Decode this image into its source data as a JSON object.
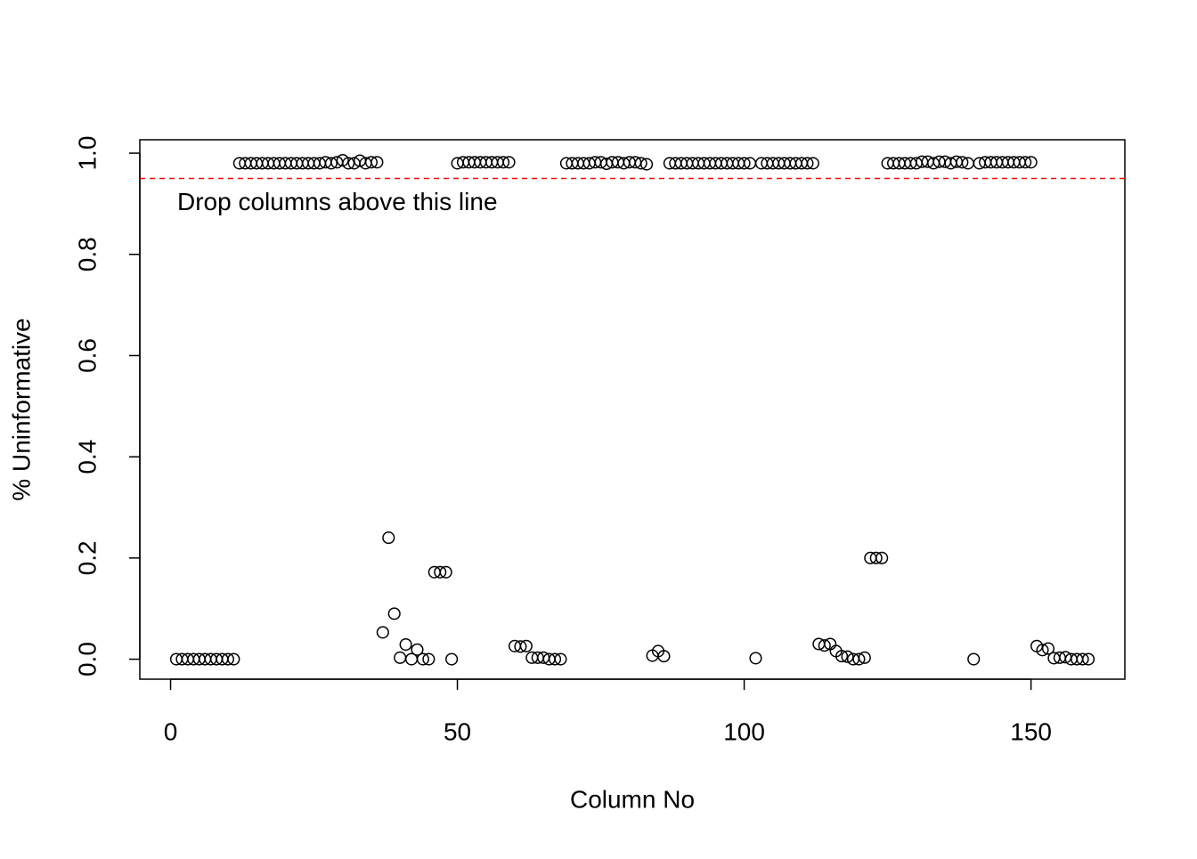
{
  "chart_data": {
    "type": "scatter",
    "xlabel": "Column No",
    "ylabel": "% Uninformative",
    "x": [
      1,
      2,
      3,
      4,
      5,
      6,
      7,
      8,
      9,
      10,
      11,
      12,
      13,
      14,
      15,
      16,
      17,
      18,
      19,
      20,
      21,
      22,
      23,
      24,
      25,
      26,
      27,
      28,
      29,
      30,
      31,
      32,
      33,
      34,
      35,
      36,
      37,
      38,
      39,
      40,
      41,
      42,
      43,
      44,
      45,
      46,
      47,
      48,
      49,
      50,
      51,
      52,
      53,
      54,
      55,
      56,
      57,
      58,
      59,
      60,
      61,
      62,
      63,
      64,
      65,
      66,
      67,
      68,
      69,
      70,
      71,
      72,
      73,
      74,
      75,
      76,
      77,
      78,
      79,
      80,
      81,
      82,
      83,
      84,
      85,
      86,
      87,
      88,
      89,
      90,
      91,
      92,
      93,
      94,
      95,
      96,
      97,
      98,
      99,
      100,
      101,
      102,
      103,
      104,
      105,
      106,
      107,
      108,
      109,
      110,
      111,
      112,
      113,
      114,
      115,
      116,
      117,
      118,
      119,
      120,
      121,
      122,
      123,
      124,
      125,
      126,
      127,
      128,
      129,
      130,
      131,
      132,
      133,
      134,
      135,
      136,
      137,
      138,
      139,
      140,
      141,
      142,
      143,
      144,
      145,
      146,
      147,
      148,
      149,
      150,
      151,
      152,
      153,
      154,
      155,
      156,
      157,
      158,
      159,
      160
    ],
    "values": [
      0,
      0,
      0,
      0,
      0,
      0,
      0,
      0,
      0,
      0,
      0,
      0.98,
      0.98,
      0.98,
      0.98,
      0.98,
      0.98,
      0.98,
      0.98,
      0.98,
      0.98,
      0.98,
      0.98,
      0.98,
      0.98,
      0.98,
      0.982,
      0.98,
      0.982,
      0.986,
      0.98,
      0.98,
      0.985,
      0.98,
      0.982,
      0.982,
      0.053,
      0.24,
      0.09,
      0.003,
      0.029,
      0,
      0.019,
      0,
      0,
      0.172,
      0.172,
      0.172,
      0,
      0.98,
      0.982,
      0.982,
      0.982,
      0.982,
      0.982,
      0.982,
      0.982,
      0.982,
      0.982,
      0.026,
      0.025,
      0.026,
      0.003,
      0.003,
      0.003,
      0,
      0,
      0,
      0.98,
      0.98,
      0.98,
      0.98,
      0.98,
      0.982,
      0.982,
      0.979,
      0.982,
      0.982,
      0.98,
      0.982,
      0.982,
      0.98,
      0.978,
      0.007,
      0.016,
      0.006,
      0.98,
      0.98,
      0.98,
      0.98,
      0.98,
      0.98,
      0.98,
      0.98,
      0.98,
      0.98,
      0.98,
      0.98,
      0.98,
      0.98,
      0.98,
      0.002,
      0.98,
      0.98,
      0.98,
      0.98,
      0.98,
      0.98,
      0.98,
      0.98,
      0.98,
      0.98,
      0.03,
      0.027,
      0.03,
      0.016,
      0.006,
      0.005,
      0,
      0,
      0.003,
      0.2,
      0.2,
      0.2,
      0.98,
      0.98,
      0.98,
      0.98,
      0.98,
      0.98,
      0.983,
      0.983,
      0.98,
      0.983,
      0.983,
      0.98,
      0.983,
      0.982,
      0.98,
      0,
      0.98,
      0.982,
      0.982,
      0.982,
      0.982,
      0.982,
      0.982,
      0.982,
      0.982,
      0.982,
      0.026,
      0.018,
      0.021,
      0.002,
      0.003,
      0.004,
      0,
      0,
      0,
      0
    ],
    "xlim": [
      -5.36,
      166.36
    ],
    "ylim": [
      -0.0395,
      1.0265
    ],
    "xticks": [
      0,
      50,
      100,
      150
    ],
    "yticks": [
      {
        "value": 0,
        "label": "0.0"
      },
      0.2,
      0.4,
      0.6,
      0.8,
      {
        "value": 1,
        "label": "1.0"
      }
    ],
    "hline": {
      "value": 0.95,
      "color": "#ff0000",
      "label": "Drop columns above this line"
    },
    "color": "#000000"
  }
}
